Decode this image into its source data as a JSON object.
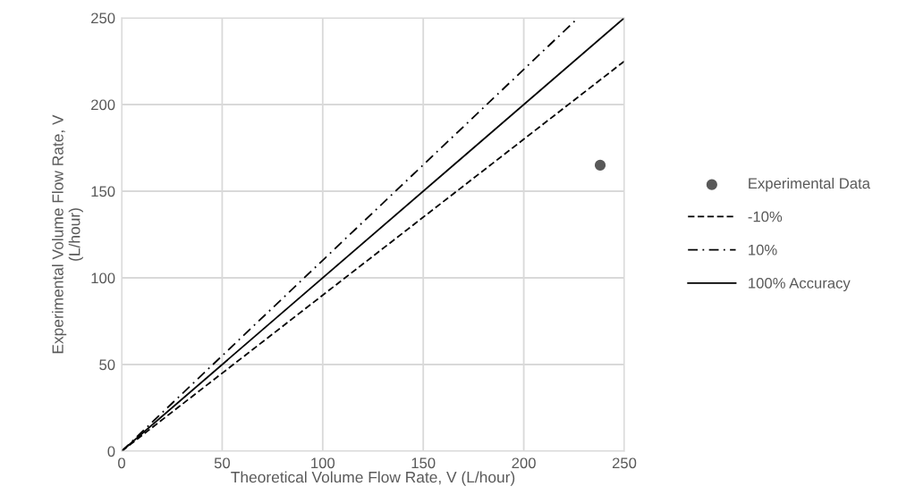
{
  "chart_data": {
    "type": "line",
    "xlabel": "Theoretical Volume Flow Rate, V (L/hour)",
    "ylabel": "Experimental Volume Flow Rate, V\n(L/hour)",
    "xlim": [
      0,
      250
    ],
    "ylim": [
      0,
      250
    ],
    "xticks": [
      0,
      50,
      100,
      150,
      200,
      250
    ],
    "yticks": [
      0,
      50,
      100,
      150,
      200,
      250
    ],
    "grid": true,
    "legend": "right",
    "series": [
      {
        "name": "Experimental Data",
        "type": "scatter",
        "color": "#595959",
        "marker": "circle",
        "x": [
          238
        ],
        "values": [
          165
        ]
      },
      {
        "name": "-10%",
        "color": "#000000",
        "line_style": "dashed",
        "x": [
          0,
          250
        ],
        "values": [
          0,
          225
        ]
      },
      {
        "name": "10%",
        "color": "#000000",
        "line_style": "dashdot",
        "x": [
          0,
          227
        ],
        "values": [
          0,
          250
        ]
      },
      {
        "name": "100% Accuracy",
        "color": "#000000",
        "line_style": "solid",
        "x": [
          0,
          250
        ],
        "values": [
          0,
          250
        ]
      }
    ]
  }
}
